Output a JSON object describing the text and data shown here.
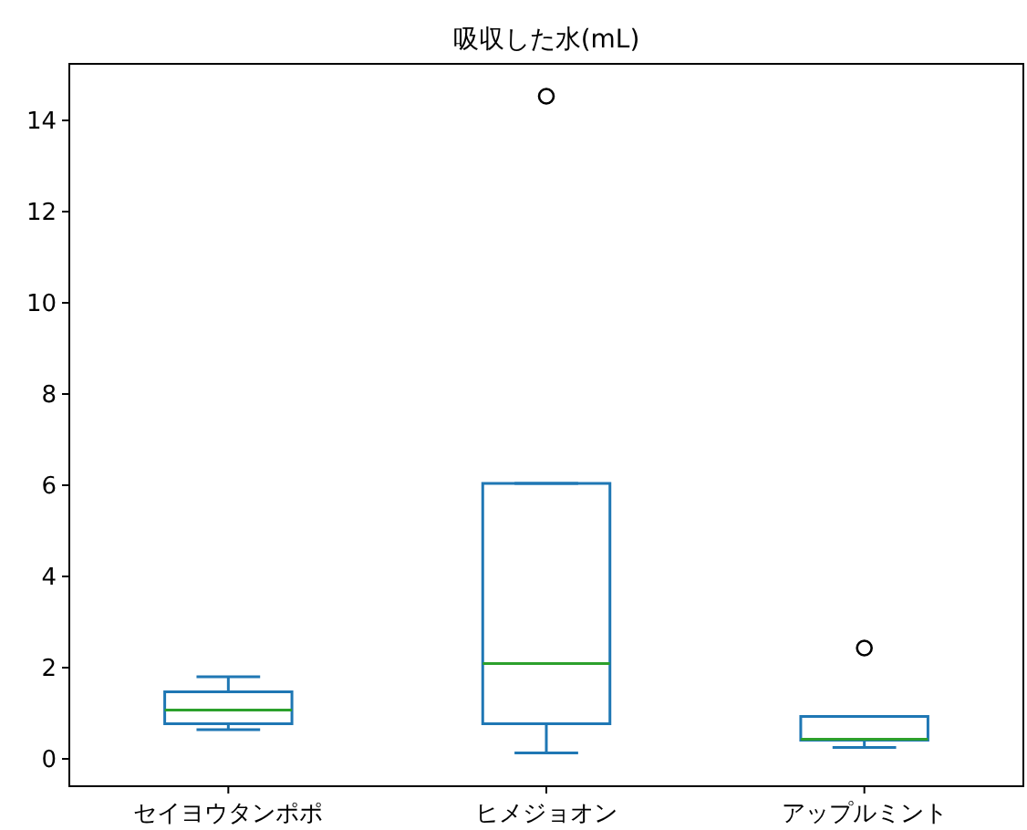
{
  "chart_data": {
    "type": "box",
    "title": "吸収した水(mL)",
    "categories": [
      "セイヨウタンポポ",
      "ヒメジョオン",
      "アップルミント"
    ],
    "boxes": [
      {
        "low": 0.64,
        "q1": 0.77,
        "median": 1.07,
        "q3": 1.47,
        "high": 1.8
      },
      {
        "low": 0.13,
        "q1": 0.77,
        "median": 2.09,
        "q3": 6.04,
        "high": 6.04,
        "outliers": [
          14.53
        ]
      },
      {
        "low": 0.25,
        "q1": 0.41,
        "median": 0.43,
        "q3": 0.93,
        "high": 0.93,
        "outliers": [
          2.43
        ]
      }
    ],
    "color": "#1f77b4",
    "ylim": [
      -0.6,
      15.24
    ],
    "yticks": [
      0,
      2,
      4,
      6,
      8,
      10,
      12,
      14
    ],
    "grid": false
  }
}
